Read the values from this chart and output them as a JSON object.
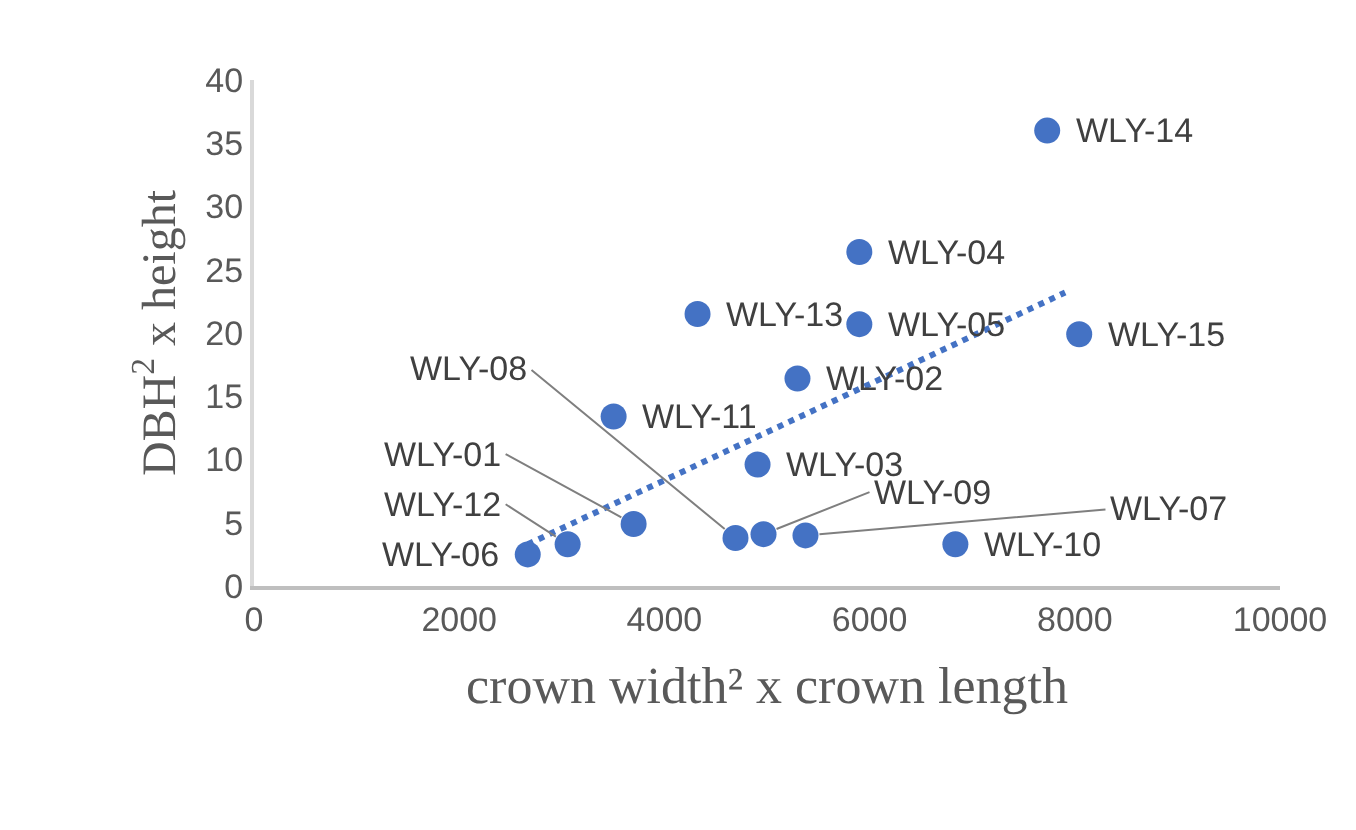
{
  "chart_data": {
    "type": "scatter",
    "xlabel": "crown width² x crown length",
    "ylabel": "DBH$^{2}$ x height",
    "xlim": [
      0,
      10000
    ],
    "xticks": [
      0,
      2000,
      4000,
      6000,
      8000,
      10000
    ],
    "ylim": [
      0,
      40
    ],
    "yticks": [
      0,
      5,
      10,
      15,
      20,
      25,
      30,
      35,
      40
    ],
    "marker": "circle",
    "series": [
      {
        "color": "#4472c4",
        "x": [
          7731,
          5900,
          4323,
          5900,
          8043,
          5297,
          3505,
          4908,
          3700,
          2668,
          3057,
          4693,
          4966,
          5375,
          6836
        ],
        "values": [
          36.0,
          26.4,
          21.5,
          20.7,
          19.9,
          16.4,
          13.4,
          9.6,
          4.9,
          2.5,
          3.3,
          3.8,
          4.1,
          4.0,
          3.3
        ]
      },
      {
        "type": "line",
        "color": "#4472c4",
        "line_style": "dotted",
        "marker": "none",
        "x": [
          2668,
          7906
        ],
        "values": [
          3.3,
          23.2
        ]
      }
    ],
    "annotations": [
      {
        "text": "WLY-14",
        "x": 7731,
        "y": 36.0
      },
      {
        "text": "WLY-04",
        "x": 5900,
        "y": 26.4
      },
      {
        "text": "WLY-13",
        "x": 4323,
        "y": 21.5
      },
      {
        "text": "WLY-05",
        "x": 5900,
        "y": 20.7
      },
      {
        "text": "WLY-15",
        "x": 8043,
        "y": 19.9
      },
      {
        "text": "WLY-02",
        "x": 5297,
        "y": 16.4
      },
      {
        "text": "WLY-11",
        "x": 3505,
        "y": 13.4
      },
      {
        "text": "WLY-03",
        "x": 4908,
        "y": 9.6
      },
      {
        "text": "WLY-01",
        "x": 3700,
        "y": 4.9
      },
      {
        "text": "WLY-06",
        "x": 2668,
        "y": 2.5
      },
      {
        "text": "WLY-12",
        "x": 3057,
        "y": 3.3
      },
      {
        "text": "WLY-08",
        "x": 4693,
        "y": 3.8
      },
      {
        "text": "WLY-09",
        "x": 4966,
        "y": 4.1
      },
      {
        "text": "WLY-07",
        "x": 5375,
        "y": 4.0
      },
      {
        "text": "WLY-10",
        "x": 6836,
        "y": 3.3
      }
    ]
  }
}
